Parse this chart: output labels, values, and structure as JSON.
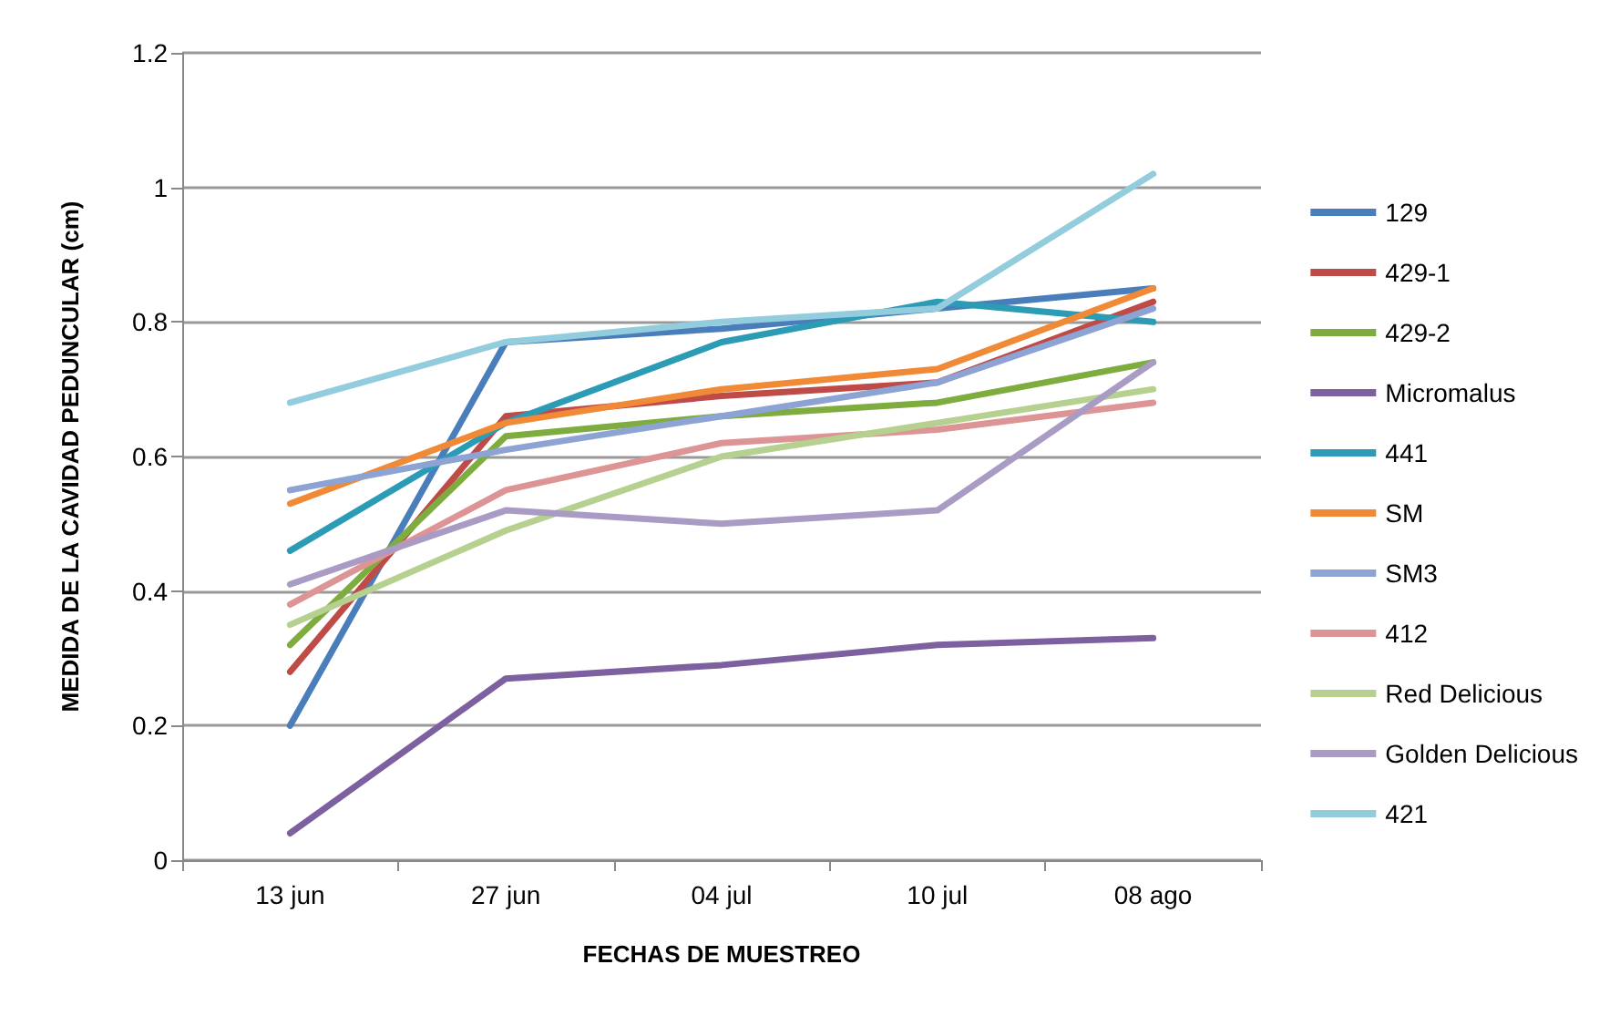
{
  "chart_data": {
    "type": "line",
    "xlabel": "FECHAS DE MUESTREO",
    "ylabel": "MEDIDA DE LA CAVIDAD PEDUNCULAR (cm)",
    "categories": [
      "13 jun",
      "27 jun",
      "04 jul",
      "10 jul",
      "08 ago"
    ],
    "ylim": [
      0,
      1.2
    ],
    "yticks": [
      0,
      0.2,
      0.4,
      0.6,
      0.8,
      1,
      1.2
    ],
    "grid": "y",
    "legend": "right",
    "marker": "none",
    "line_style": "solid",
    "series": [
      {
        "name": "129",
        "color": "#4a7ebb",
        "values": [
          0.2,
          0.77,
          0.79,
          0.82,
          0.85
        ]
      },
      {
        "name": "429-1",
        "color": "#be4b48",
        "values": [
          0.28,
          0.66,
          0.69,
          0.71,
          0.83
        ]
      },
      {
        "name": "429-2",
        "color": "#7eac3e",
        "values": [
          0.32,
          0.63,
          0.66,
          0.68,
          0.74
        ]
      },
      {
        "name": "Micromalus",
        "color": "#7d60a0",
        "values": [
          0.04,
          0.27,
          0.29,
          0.32,
          0.33
        ]
      },
      {
        "name": "441",
        "color": "#2c9bb5",
        "values": [
          0.46,
          0.65,
          0.77,
          0.83,
          0.8
        ]
      },
      {
        "name": "SM",
        "color": "#f08a36",
        "values": [
          0.53,
          0.65,
          0.7,
          0.73,
          0.85
        ]
      },
      {
        "name": "SM3",
        "color": "#8ca3d4",
        "values": [
          0.55,
          0.61,
          0.66,
          0.71,
          0.82
        ]
      },
      {
        "name": "412",
        "color": "#dd9494",
        "values": [
          0.38,
          0.55,
          0.62,
          0.64,
          0.68
        ]
      },
      {
        "name": "Red Delicious",
        "color": "#b5d08f",
        "values": [
          0.35,
          0.49,
          0.6,
          0.65,
          0.7
        ]
      },
      {
        "name": "Golden Delicious",
        "color": "#a99bc4",
        "values": [
          0.41,
          0.52,
          0.5,
          0.52,
          0.74
        ]
      },
      {
        "name": "421",
        "color": "#93cddd",
        "values": [
          0.68,
          0.77,
          0.8,
          0.82,
          1.02
        ]
      }
    ]
  }
}
